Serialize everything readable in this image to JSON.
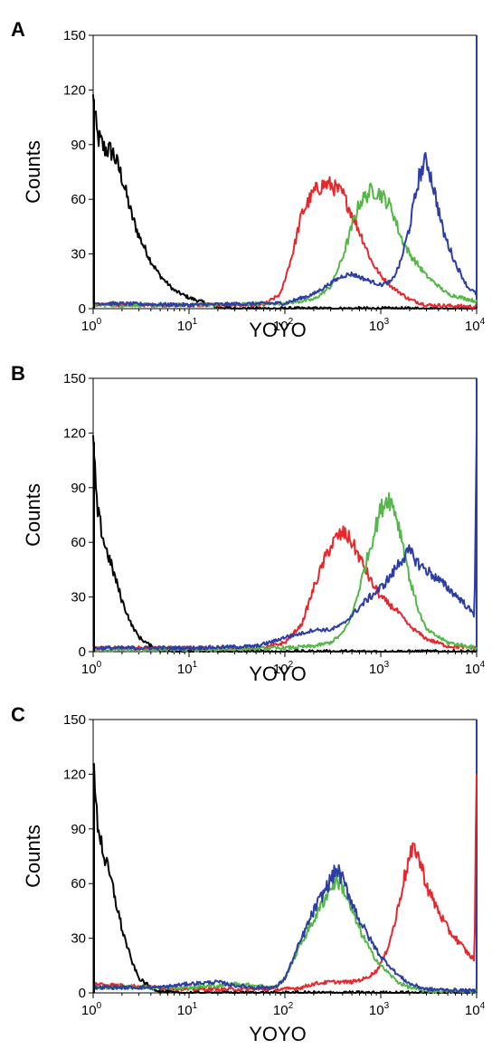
{
  "chart_data": [
    {
      "panel": "A",
      "type": "line",
      "xscale": "log",
      "xlim": [
        1,
        10000
      ],
      "ylim": [
        0,
        150
      ],
      "yticks": [
        0,
        30,
        60,
        90,
        120,
        150
      ],
      "xticks": [
        {
          "base": "10",
          "exp": "0"
        },
        {
          "base": "10",
          "exp": "1"
        },
        {
          "base": "10",
          "exp": "2"
        },
        {
          "base": "10",
          "exp": "3"
        },
        {
          "base": "10",
          "exp": "4"
        }
      ],
      "xlabel": "YOYO",
      "ylabel": "Counts",
      "series": [
        {
          "color": "#000000",
          "x": [
            1,
            1.1,
            1.3,
            1.6,
            2,
            2.5,
            3,
            4,
            5,
            7,
            10,
            15,
            20,
            30,
            100,
            1000,
            10000
          ],
          "y": [
            115,
            95,
            88,
            86,
            72,
            52,
            40,
            26,
            18,
            10,
            6,
            3,
            1,
            0,
            0,
            0,
            0
          ]
        },
        {
          "color": "#e8262b",
          "x": [
            1,
            10,
            60,
            90,
            120,
            150,
            200,
            250,
            300,
            400,
            500,
            650,
            800,
            1000,
            1300,
            2000,
            3000,
            10000
          ],
          "y": [
            2,
            2,
            2,
            8,
            30,
            52,
            64,
            68,
            68,
            63,
            52,
            38,
            26,
            18,
            12,
            5,
            2,
            1
          ]
        },
        {
          "color": "#53b847",
          "x": [
            1,
            10,
            100,
            200,
            300,
            400,
            500,
            600,
            800,
            1000,
            1300,
            1600,
            2000,
            3000,
            5000,
            10000
          ],
          "y": [
            2,
            2,
            3,
            5,
            12,
            28,
            45,
            58,
            65,
            63,
            55,
            40,
            30,
            18,
            8,
            4
          ]
        },
        {
          "color": "#2d3da6",
          "x": [
            1,
            10,
            100,
            200,
            300,
            400,
            500,
            700,
            1000,
            1300,
            1600,
            2000,
            2500,
            3000,
            3500,
            4500,
            6000,
            8000,
            10000
          ],
          "y": [
            3,
            2,
            3,
            8,
            14,
            18,
            19,
            16,
            13,
            15,
            25,
            45,
            72,
            82,
            68,
            42,
            25,
            12,
            8
          ]
        }
      ]
    },
    {
      "panel": "B",
      "type": "line",
      "xscale": "log",
      "xlim": [
        1,
        10000
      ],
      "ylim": [
        0,
        150
      ],
      "yticks": [
        0,
        30,
        60,
        90,
        120,
        150
      ],
      "xticks": [
        {
          "base": "10",
          "exp": "0"
        },
        {
          "base": "10",
          "exp": "1"
        },
        {
          "base": "10",
          "exp": "2"
        },
        {
          "base": "10",
          "exp": "3"
        },
        {
          "base": "10",
          "exp": "4"
        }
      ],
      "xlabel": "YOYO",
      "ylabel": "Counts",
      "series": [
        {
          "color": "#000000",
          "x": [
            1,
            1.1,
            1.3,
            1.6,
            2,
            2.5,
            3,
            4,
            5,
            7,
            10,
            100,
            10000
          ],
          "y": [
            115,
            78,
            60,
            45,
            28,
            15,
            8,
            3,
            1,
            0,
            0,
            0,
            0
          ]
        },
        {
          "color": "#e8262b",
          "x": [
            1,
            10,
            60,
            100,
            150,
            200,
            280,
            350,
            420,
            500,
            650,
            800,
            1000,
            1500,
            2000,
            3000,
            5000,
            10000
          ],
          "y": [
            2,
            2,
            2,
            5,
            15,
            35,
            55,
            63,
            65,
            60,
            48,
            38,
            30,
            22,
            14,
            7,
            3,
            2
          ]
        },
        {
          "color": "#53b847",
          "x": [
            1,
            10,
            100,
            200,
            300,
            400,
            500,
            600,
            800,
            1000,
            1200,
            1400,
            1700,
            2000,
            2500,
            3000,
            5000,
            10000
          ],
          "y": [
            1,
            1,
            2,
            3,
            5,
            10,
            20,
            35,
            60,
            78,
            85,
            78,
            60,
            40,
            22,
            12,
            5,
            2
          ]
        },
        {
          "color": "#2d3da6",
          "x": [
            1,
            10,
            50,
            80,
            100,
            150,
            200,
            300,
            400,
            500,
            700,
            1000,
            1300,
            1600,
            2000,
            2500,
            3500,
            5000,
            7000,
            9500,
            10000
          ],
          "y": [
            2,
            2,
            3,
            6,
            8,
            10,
            12,
            12,
            15,
            20,
            28,
            35,
            42,
            50,
            55,
            48,
            42,
            35,
            28,
            20,
            128
          ]
        }
      ]
    },
    {
      "panel": "C",
      "type": "line",
      "xscale": "log",
      "xlim": [
        1,
        10000
      ],
      "ylim": [
        0,
        150
      ],
      "yticks": [
        0,
        30,
        60,
        90,
        120,
        150
      ],
      "xticks": [
        {
          "base": "10",
          "exp": "0"
        },
        {
          "base": "10",
          "exp": "1"
        },
        {
          "base": "10",
          "exp": "2"
        },
        {
          "base": "10",
          "exp": "3"
        },
        {
          "base": "10",
          "exp": "4"
        }
      ],
      "xlabel": "YOYO",
      "ylabel": "Counts",
      "series": [
        {
          "color": "#000000",
          "x": [
            1,
            1.1,
            1.3,
            1.6,
            2,
            2.5,
            3,
            4,
            5,
            7,
            10,
            20,
            10000
          ],
          "y": [
            125,
            95,
            75,
            58,
            35,
            18,
            8,
            3,
            1,
            0,
            0,
            0,
            0
          ]
        },
        {
          "color": "#e8262b",
          "x": [
            1,
            10,
            100,
            150,
            200,
            300,
            500,
            700,
            900,
            1100,
            1400,
            1700,
            2000,
            2300,
            2700,
            3200,
            4000,
            5000,
            6500,
            8000,
            9500,
            10000
          ],
          "y": [
            5,
            2,
            2,
            3,
            5,
            6,
            6,
            8,
            12,
            20,
            38,
            60,
            74,
            80,
            68,
            55,
            45,
            35,
            28,
            22,
            18,
            128
          ]
        },
        {
          "color": "#53b847",
          "x": [
            1,
            5,
            10,
            20,
            30,
            50,
            80,
            100,
            150,
            200,
            300,
            350,
            400,
            500,
            600,
            800,
            1000,
            1500,
            2000,
            3000,
            10000
          ],
          "y": [
            3,
            3,
            3,
            4,
            5,
            4,
            3,
            8,
            28,
            40,
            58,
            62,
            58,
            45,
            35,
            22,
            15,
            6,
            3,
            1,
            1
          ]
        },
        {
          "color": "#2d3da6",
          "x": [
            1,
            5,
            10,
            20,
            30,
            50,
            80,
            100,
            150,
            200,
            300,
            350,
            400,
            500,
            600,
            800,
            1000,
            1500,
            2000,
            3000,
            10000
          ],
          "y": [
            3,
            3,
            5,
            6,
            4,
            3,
            3,
            8,
            30,
            45,
            62,
            68,
            62,
            50,
            40,
            28,
            20,
            10,
            5,
            2,
            1
          ]
        }
      ]
    }
  ]
}
